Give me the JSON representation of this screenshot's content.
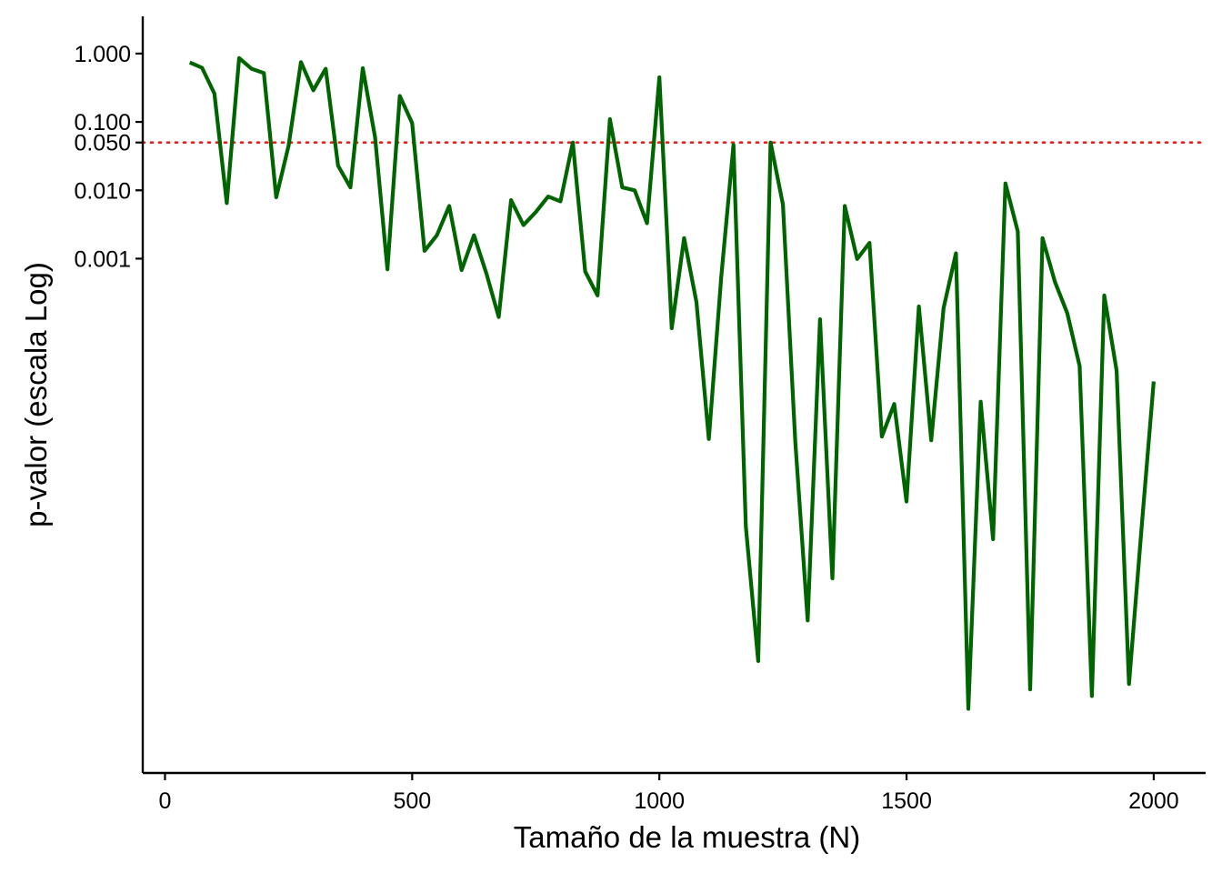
{
  "chart_data": {
    "type": "line",
    "title": "",
    "xlabel": "Tamaño de la muestra (N)",
    "ylabel": "p-valor (escala Log)",
    "xlim": [
      -45,
      2105
    ],
    "ylim": [
      3e-11,
      3.5
    ],
    "y_scale": "log",
    "grid": false,
    "legend": "none",
    "x_ticks": [
      0,
      500,
      1000,
      1500,
      2000
    ],
    "x_tick_labels": [
      "0",
      "500",
      "1000",
      "1500",
      "2000"
    ],
    "y_ticks": [
      1,
      0.1,
      0.05,
      0.01,
      0.001
    ],
    "y_tick_labels": [
      "1.000",
      "0.100",
      "0.050",
      "0.010",
      "0.001"
    ],
    "reference_line": {
      "y": 0.05,
      "style": "dotted",
      "color": "#e8201c"
    },
    "line_color": "#006400",
    "series": [
      {
        "x": [
          50,
          75,
          100,
          125,
          150,
          175,
          200,
          225,
          250,
          275,
          300,
          325,
          350,
          375,
          400,
          425,
          450,
          475,
          500,
          525,
          550,
          575,
          600,
          625,
          650,
          675,
          700,
          725,
          750,
          775,
          800,
          825,
          850,
          875,
          900,
          925,
          950,
          975,
          1000,
          1025,
          1050,
          1075,
          1100,
          1125,
          1150,
          1175,
          1200,
          1225,
          1250,
          1275,
          1300,
          1325,
          1350,
          1375,
          1400,
          1425,
          1450,
          1475,
          1500,
          1525,
          1550,
          1575,
          1600,
          1625,
          1650,
          1675,
          1700,
          1725,
          1750,
          1775,
          1800,
          1825,
          1850,
          1875,
          1900,
          1925,
          1950,
          1975,
          2000
        ],
        "values": [
          0.74,
          0.62,
          0.26,
          0.0065,
          0.86,
          0.6,
          0.52,
          0.0079,
          0.045,
          0.75,
          0.29,
          0.6,
          0.023,
          0.011,
          0.61,
          0.06,
          0.0007,
          0.24,
          0.096,
          0.0013,
          0.0022,
          0.0059,
          0.00068,
          0.0022,
          0.00061,
          0.00014,
          0.0072,
          0.0031,
          0.0048,
          0.0081,
          0.0069,
          0.05,
          0.00065,
          0.00029,
          0.11,
          0.011,
          0.01,
          0.0033,
          0.45,
          9.6e-05,
          0.002,
          0.00023,
          2.3e-06,
          0.00053,
          0.046,
          1.2e-07,
          1.3e-09,
          0.05,
          0.0062,
          2.1e-06,
          5.1e-09,
          0.00013,
          2.11e-08,
          0.0059,
          0.00099,
          0.0017,
          2.5e-06,
          7.5e-06,
          2.8e-07,
          0.0002,
          2.2e-06,
          0.00019,
          0.0012,
          2.6e-10,
          8.1e-06,
          7.9e-08,
          0.0126,
          0.0025,
          5e-10,
          0.002,
          0.00046,
          0.00016,
          2.7e-05,
          4e-10,
          0.00029,
          2.3e-05,
          6e-10,
          1.05e-07,
          1.6e-05
        ]
      }
    ]
  }
}
